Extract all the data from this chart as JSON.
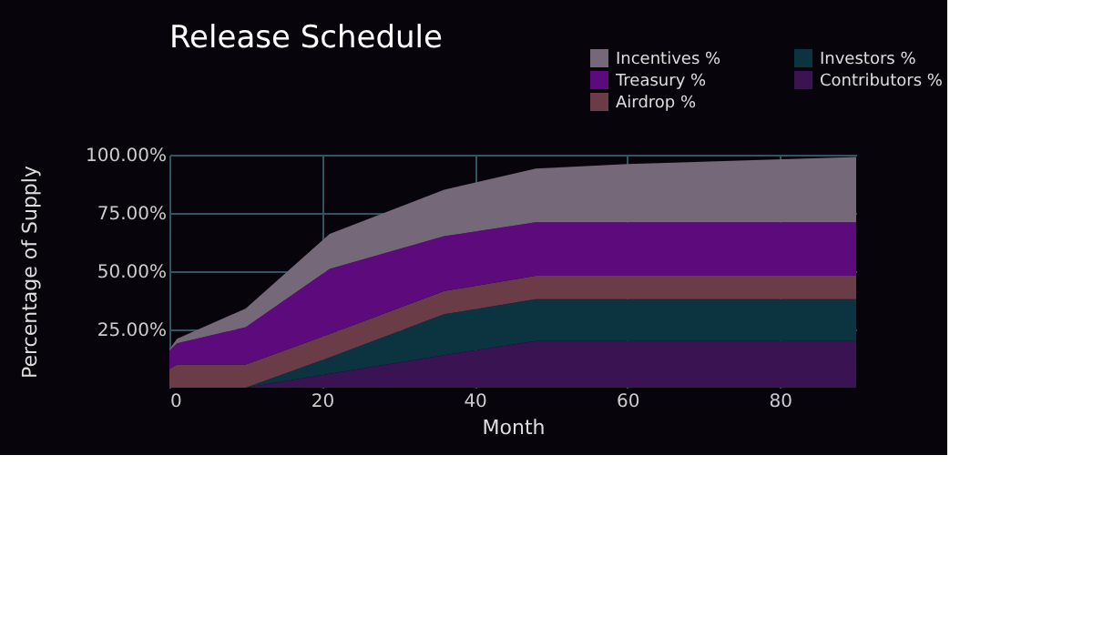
{
  "chart_data": {
    "type": "area",
    "title": "Release Schedule",
    "xlabel": "Month",
    "ylabel": "Percentage of Supply",
    "x": [
      0,
      1,
      10,
      21,
      36,
      48,
      60,
      90
    ],
    "stacked": true,
    "series": [
      {
        "name": "Contributors %",
        "color": "#3a1352",
        "values": [
          0,
          0,
          0,
          6,
          14,
          20,
          20,
          20
        ]
      },
      {
        "name": "Investors %",
        "color": "#0b3440",
        "values": [
          0,
          0,
          0,
          7,
          17.5,
          18,
          18,
          18
        ]
      },
      {
        "name": "Airdrop %",
        "color": "#6a3c48",
        "values": [
          8,
          10,
          10,
          10,
          10,
          10,
          10,
          10
        ]
      },
      {
        "name": "Treasury %",
        "color": "#5c0a7c",
        "values": [
          8,
          9,
          16,
          28,
          23.5,
          23,
          23,
          23
        ]
      },
      {
        "name": "Incentives %",
        "color": "#756878",
        "values": [
          0.5,
          2,
          8,
          15,
          20,
          23,
          25,
          28
        ]
      }
    ],
    "xlim": [
      0,
      90
    ],
    "xticks": [
      0,
      20,
      40,
      60,
      80
    ],
    "ylim": [
      0,
      100
    ],
    "yticks": [
      {
        "value": 25,
        "label": "25.00%"
      },
      {
        "value": 50,
        "label": "50.00%"
      },
      {
        "value": 75,
        "label": "75.00%"
      },
      {
        "value": 100,
        "label": "100.00%"
      }
    ],
    "grid": true,
    "legend": "top right"
  }
}
